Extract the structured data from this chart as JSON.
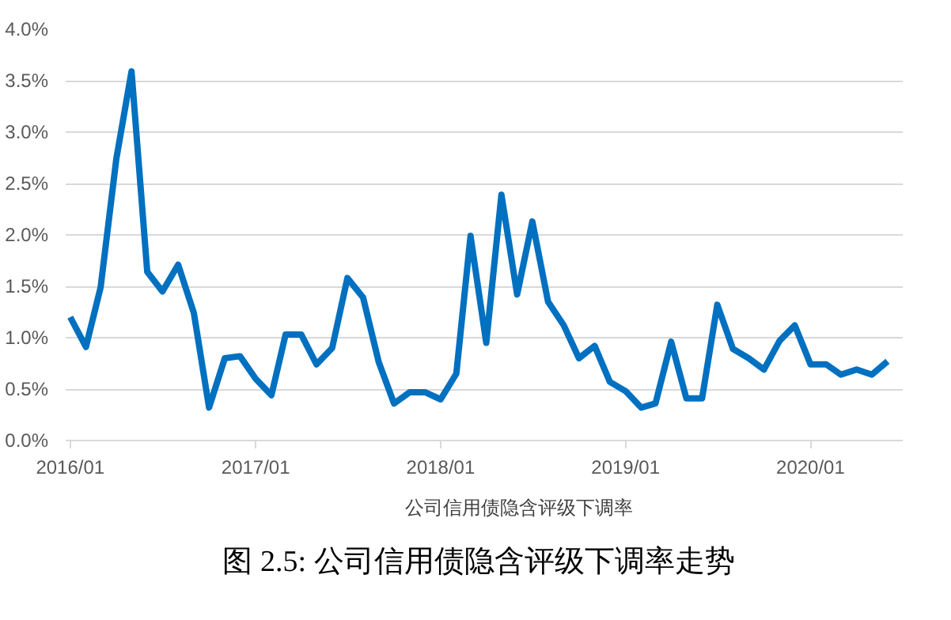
{
  "chart_data": {
    "type": "line",
    "title": "图 2.5:  公司信用债隐含评级下调率走势",
    "x": [
      "2016-01",
      "2016-02",
      "2016-03",
      "2016-04",
      "2016-05",
      "2016-06",
      "2016-07",
      "2016-08",
      "2016-09",
      "2016-10",
      "2016-11",
      "2016-12",
      "2017-01",
      "2017-02",
      "2017-03",
      "2017-04",
      "2017-05",
      "2017-06",
      "2017-07",
      "2017-08",
      "2017-09",
      "2017-10",
      "2017-11",
      "2017-12",
      "2018-01",
      "2018-02",
      "2018-03",
      "2018-04",
      "2018-05",
      "2018-06",
      "2018-07",
      "2018-08",
      "2018-09",
      "2018-10",
      "2018-11",
      "2018-12",
      "2019-01",
      "2019-02",
      "2019-03",
      "2019-04",
      "2019-05",
      "2019-06",
      "2019-07",
      "2019-08",
      "2019-09",
      "2019-10",
      "2019-11",
      "2019-12",
      "2020-01",
      "2020-02",
      "2020-03",
      "2020-04",
      "2020-05",
      "2020-06"
    ],
    "series": [
      {
        "name": "公司信用债隐含评级下调率",
        "color": "#0070c0",
        "values": [
          1.2,
          0.91,
          1.49,
          2.74,
          3.59,
          1.64,
          1.45,
          1.71,
          1.24,
          0.32,
          0.8,
          0.82,
          0.6,
          0.44,
          1.03,
          1.03,
          0.74,
          0.9,
          1.58,
          1.39,
          0.76,
          0.36,
          0.47,
          0.47,
          0.4,
          0.65,
          1.99,
          0.95,
          2.39,
          1.42,
          2.13,
          1.35,
          1.12,
          0.8,
          0.92,
          0.57,
          0.48,
          0.32,
          0.36,
          0.96,
          0.41,
          0.41,
          1.32,
          0.89,
          0.8,
          0.69,
          0.97,
          1.12,
          0.74,
          0.74,
          0.64,
          0.69,
          0.64,
          0.77
        ]
      }
    ],
    "xlim": [
      "2015-12-23",
      "2020-07-01"
    ],
    "xticks": [
      {
        "value": "2016-01",
        "label": "2016/01"
      },
      {
        "value": "2017-01",
        "label": "2017/01"
      },
      {
        "value": "2018-01",
        "label": "2018/01"
      },
      {
        "value": "2019-01",
        "label": "2019/01"
      },
      {
        "value": "2020-01",
        "label": "2020/01"
      }
    ],
    "ylim": [
      0,
      4
    ],
    "yticks": [
      {
        "value": 0,
        "label": "0.0%"
      },
      {
        "value": 0.5,
        "label": "0.5%"
      },
      {
        "value": 1,
        "label": "1.0%"
      },
      {
        "value": 1.5,
        "label": "1.5%"
      },
      {
        "value": 2,
        "label": "2.0%"
      },
      {
        "value": 2.5,
        "label": "2.5%"
      },
      {
        "value": 3,
        "label": "3.0%"
      },
      {
        "value": 3.5,
        "label": "3.5%"
      },
      {
        "value": 4,
        "label": "4.0%"
      }
    ],
    "grid": "y",
    "legend": "bottom",
    "marker": "none",
    "line_style": "solid"
  }
}
